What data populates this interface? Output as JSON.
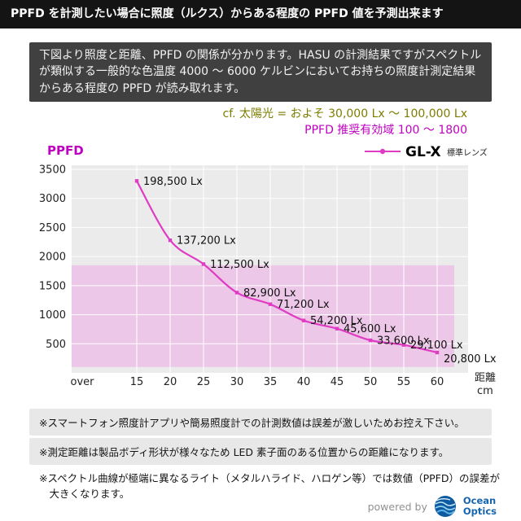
{
  "header": {
    "title": "PPFD を計測したい場合に照度（ルクス）からある程度の PPFD 値を予測出来ます"
  },
  "intro": {
    "text": "下図より照度と距離、PPFD の関係が分かります。HASU の計測結果ですがスペクトルが類似する一般的な色温度 4000 ～ 6000 ケルビンにおいてお持ちの照度計測定結果からある程度の PPFD が読み取れます。"
  },
  "annotations": {
    "sunlight": "cf. 太陽光 = およそ 30,000 Lx ～ 100,000 Lx",
    "ppfd_range": "PPFD 推奨有効域 100 ～ 1800"
  },
  "chart_data": {
    "type": "line",
    "title": "",
    "ylabel": "PPFD",
    "xlabel": "距離",
    "x_unit": "cm",
    "over_label": "over",
    "grid": true,
    "ylim": [
      0,
      3500
    ],
    "yticks": [
      500,
      1000,
      1500,
      2000,
      2500,
      3000,
      3500
    ],
    "x": [
      15,
      20,
      25,
      30,
      35,
      40,
      45,
      50,
      55,
      60
    ],
    "legend": {
      "position": "top-right",
      "series_label": "GL-X",
      "series_sublabel": "標準レンズ"
    },
    "band": {
      "from": 100,
      "to": 1850,
      "color": "#edc7e7"
    },
    "series": [
      {
        "name": "GL-X",
        "color": "#df3bc3",
        "values": [
          3300,
          2280,
          1870,
          1380,
          1180,
          900,
          760,
          560,
          480,
          350
        ],
        "point_labels": [
          "198,500 Lx",
          "137,200 Lx",
          "112,500 Lx",
          "82,900 Lx",
          "71,200 Lx",
          "54,200 Lx",
          "45,600 Lx",
          "33,600 Lx",
          "29,100 Lx",
          "20,800 Lx"
        ]
      }
    ]
  },
  "notes": {
    "items": [
      "※スマートフォン照度計アプリや簡易照度計での計測数値は誤差が激しいためお控え下さい。",
      "※測定距離は製品ボディ形状が様々なため LED 素子面のある位置からの距離になります。",
      "※スペクトル曲線が極端に異なるライト（メタルハライド、ハロゲン等）では数値（PPFD）の誤差が大きくなります。"
    ]
  },
  "footer": {
    "powered_by": "powered by",
    "brand_line1": "Ocean",
    "brand_line2": "Optics"
  }
}
